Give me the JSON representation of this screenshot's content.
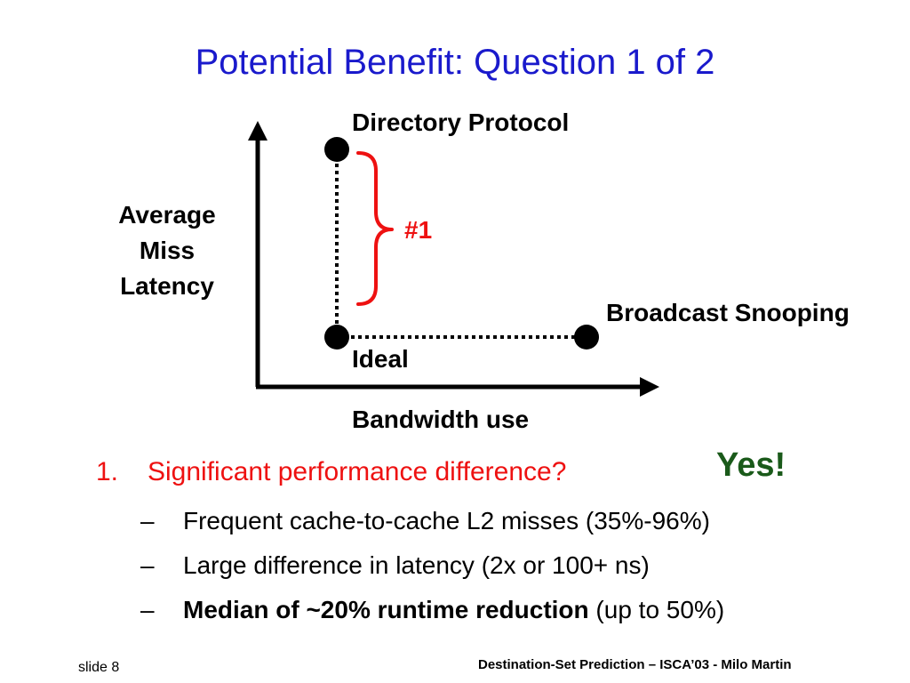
{
  "title": "Potential Benefit: Question 1 of 2",
  "diagram": {
    "y_axis_label": [
      "Average",
      "Miss",
      "Latency"
    ],
    "x_axis_label": "Bandwidth use",
    "points": {
      "directory": "Directory Protocol",
      "snooping": "Broadcast Snooping",
      "ideal": "Ideal"
    },
    "callout": "#1",
    "colors": {
      "brace": "#ee1111",
      "axis": "#000000"
    }
  },
  "bullets": {
    "number": "1.",
    "question": "Significant performance difference?",
    "answer": "Yes!",
    "items": [
      {
        "dash": "–",
        "text": "Frequent cache-to-cache L2 misses (35%-96%)"
      },
      {
        "dash": "–",
        "text": "Large difference in latency (2x or 100+ ns)"
      },
      {
        "dash": "–",
        "bold": "Median of ~20% runtime reduction",
        "text": " (up to 50%)"
      }
    ]
  },
  "footer": {
    "slide": "slide 8",
    "citation": "Destination-Set Prediction – ISCA’03 - Milo Martin"
  },
  "colors": {
    "title": "#1a1acc",
    "question": "#ee1111",
    "answer": "#1a5a1a"
  }
}
